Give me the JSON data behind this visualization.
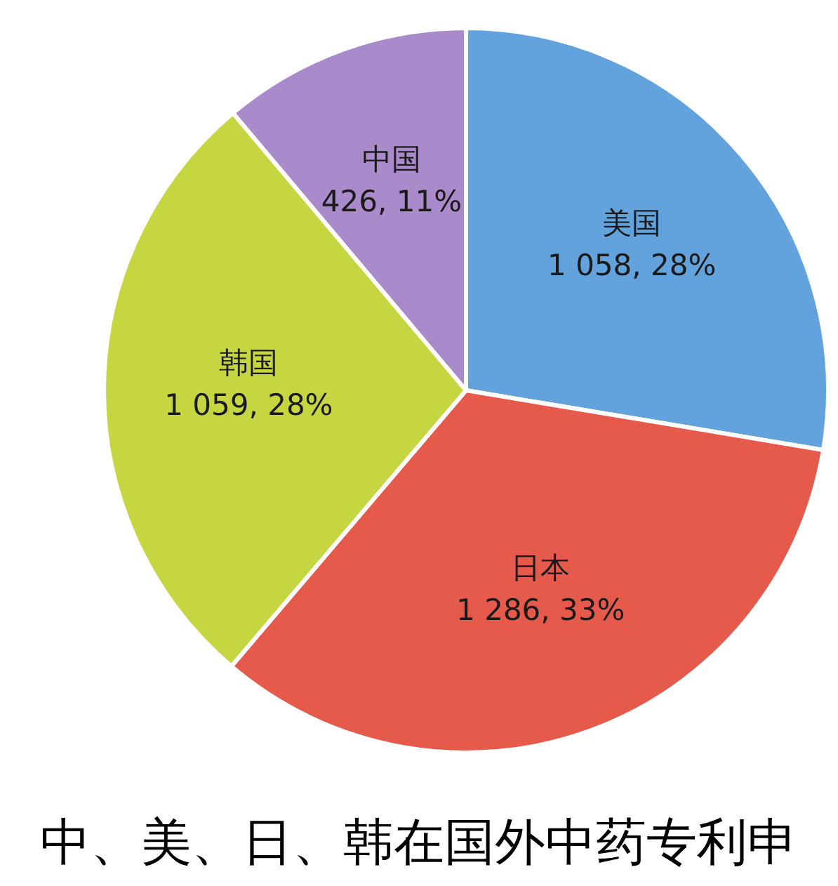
{
  "chart_data": {
    "type": "pie",
    "title": "中、美、日、韩在国外中药专利申",
    "categories": [
      "美国",
      "日本",
      "韩国",
      "中国"
    ],
    "values": [
      1058,
      1286,
      1059,
      426
    ],
    "value_labels": [
      "1 058, 28%",
      "1 286, 33%",
      "1 059, 28%",
      "426, 11%"
    ],
    "colors": [
      "#62a3dd",
      "#e65a4c",
      "#c5d640",
      "#a98acb"
    ]
  }
}
